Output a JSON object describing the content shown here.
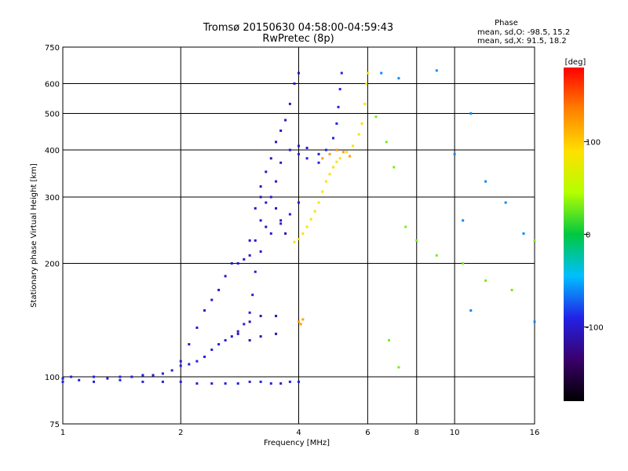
{
  "chart_data": {
    "type": "scatter",
    "title": "Tromsø 20150630 04:58:00-04:59:43",
    "subtitle": "RwPretec (8p)",
    "phase_header": "Phase",
    "phase_o": "mean, sd,O: -98.5, 15.2",
    "phase_x": "mean, sd,X:  91.5, 18.2",
    "xlabel": "Frequency [MHz]",
    "ylabel": "Stationary phase Virtual Height [km]",
    "x_scale": "log",
    "y_scale": "log",
    "xlim": [
      1,
      16
    ],
    "ylim": [
      75,
      750
    ],
    "grid": true,
    "x_ticks": [
      1,
      2,
      4,
      6,
      8,
      10,
      16
    ],
    "x_tick_labels": [
      "1",
      "2",
      "4",
      "6",
      "8",
      "10",
      "16"
    ],
    "y_ticks": [
      75,
      100,
      200,
      300,
      400,
      500,
      600,
      750
    ],
    "y_tick_labels": [
      "75",
      "100",
      "200",
      "300",
      "400",
      "500",
      "600",
      "750"
    ],
    "colorbar": {
      "label": "[deg]",
      "range": [
        -180,
        180
      ],
      "ticks": [
        100,
        0,
        -100
      ],
      "tick_labels": [
        "100",
        "0",
        "-100"
      ],
      "colors": [
        "#000000",
        "#3a006b",
        "#2222e6",
        "#00bfff",
        "#00c840",
        "#b4ff00",
        "#ffe000",
        "#ff8000",
        "#ff0000"
      ]
    },
    "series": [
      {
        "phase": -95,
        "points": [
          [
            1.0,
            99
          ],
          [
            1.05,
            100
          ],
          [
            1.1,
            98
          ],
          [
            1.2,
            100
          ],
          [
            1.3,
            99
          ],
          [
            1.4,
            100
          ],
          [
            1.5,
            100
          ],
          [
            1.6,
            101
          ],
          [
            1.7,
            101
          ],
          [
            1.8,
            102
          ],
          [
            1.9,
            104
          ],
          [
            2.0,
            107
          ],
          [
            2.1,
            108
          ],
          [
            2.2,
            110
          ],
          [
            2.3,
            113
          ],
          [
            2.4,
            118
          ],
          [
            2.5,
            122
          ],
          [
            2.6,
            125
          ],
          [
            2.7,
            128
          ],
          [
            2.8,
            132
          ],
          [
            2.9,
            138
          ],
          [
            3.0,
            148
          ],
          [
            3.05,
            165
          ],
          [
            3.1,
            190
          ],
          [
            3.2,
            215
          ],
          [
            3.4,
            240
          ],
          [
            3.6,
            255
          ],
          [
            3.8,
            270
          ],
          [
            4.0,
            290
          ]
        ]
      },
      {
        "phase": -92,
        "points": [
          [
            1.0,
            97
          ],
          [
            1.2,
            97
          ],
          [
            1.4,
            98
          ],
          [
            1.6,
            97
          ],
          [
            1.8,
            97
          ],
          [
            2.0,
            97
          ],
          [
            2.2,
            96
          ],
          [
            2.4,
            96
          ],
          [
            2.6,
            96
          ],
          [
            2.8,
            96
          ],
          [
            3.0,
            97
          ],
          [
            3.2,
            97
          ],
          [
            3.4,
            96
          ],
          [
            3.6,
            96
          ],
          [
            3.8,
            97
          ],
          [
            4.0,
            97
          ]
        ]
      },
      {
        "phase": -100,
        "points": [
          [
            2.0,
            110
          ],
          [
            2.1,
            122
          ],
          [
            2.2,
            135
          ],
          [
            2.3,
            150
          ],
          [
            2.4,
            160
          ],
          [
            2.5,
            170
          ],
          [
            2.6,
            185
          ],
          [
            2.7,
            200
          ],
          [
            2.8,
            200
          ],
          [
            2.9,
            205
          ],
          [
            3.0,
            210
          ],
          [
            3.1,
            230
          ],
          [
            3.2,
            260
          ],
          [
            3.3,
            290
          ],
          [
            3.4,
            300
          ],
          [
            3.5,
            330
          ],
          [
            3.6,
            370
          ],
          [
            3.8,
            400
          ],
          [
            4.0,
            410
          ],
          [
            4.2,
            405
          ],
          [
            4.5,
            390
          ],
          [
            5.0,
            400
          ]
        ]
      },
      {
        "phase": -105,
        "points": [
          [
            3.0,
            230
          ],
          [
            3.1,
            280
          ],
          [
            3.2,
            320
          ],
          [
            3.3,
            350
          ],
          [
            3.4,
            380
          ],
          [
            3.5,
            420
          ],
          [
            3.6,
            450
          ],
          [
            3.7,
            480
          ],
          [
            3.8,
            530
          ],
          [
            3.9,
            600
          ],
          [
            4.0,
            640
          ]
        ]
      },
      {
        "phase": -110,
        "points": [
          [
            2.8,
            130
          ],
          [
            3.0,
            140
          ],
          [
            3.2,
            145
          ],
          [
            3.5,
            145
          ],
          [
            3.0,
            125
          ],
          [
            3.2,
            128
          ],
          [
            3.5,
            130
          ],
          [
            3.2,
            300
          ],
          [
            3.3,
            250
          ],
          [
            3.5,
            280
          ],
          [
            3.6,
            260
          ],
          [
            3.7,
            240
          ]
        ]
      },
      {
        "phase": -90,
        "points": [
          [
            4.0,
            390
          ],
          [
            4.2,
            380
          ],
          [
            4.5,
            370
          ],
          [
            4.7,
            400
          ],
          [
            4.9,
            430
          ],
          [
            5.0,
            470
          ],
          [
            5.05,
            520
          ],
          [
            5.1,
            580
          ],
          [
            5.15,
            640
          ]
        ]
      },
      {
        "phase": 90,
        "points": [
          [
            3.9,
            228
          ],
          [
            4.0,
            232
          ],
          [
            4.1,
            240
          ],
          [
            4.2,
            250
          ],
          [
            4.3,
            262
          ],
          [
            4.4,
            275
          ],
          [
            4.5,
            290
          ],
          [
            4.6,
            310
          ],
          [
            4.7,
            330
          ],
          [
            4.8,
            345
          ],
          [
            4.9,
            360
          ],
          [
            5.0,
            372
          ],
          [
            5.1,
            380
          ],
          [
            5.3,
            395
          ],
          [
            5.5,
            410
          ],
          [
            5.7,
            440
          ],
          [
            5.8,
            470
          ],
          [
            5.9,
            530
          ],
          [
            5.95,
            600
          ],
          [
            6.0,
            640
          ]
        ]
      },
      {
        "phase": 120,
        "points": [
          [
            4.6,
            380
          ],
          [
            4.8,
            390
          ],
          [
            5.0,
            400
          ],
          [
            5.2,
            395
          ],
          [
            5.4,
            385
          ],
          [
            4.0,
            140
          ],
          [
            4.05,
            138
          ],
          [
            4.1,
            142
          ]
        ]
      },
      {
        "phase": 30,
        "points": [
          [
            6.3,
            490
          ],
          [
            6.7,
            420
          ],
          [
            7.0,
            360
          ],
          [
            7.5,
            250
          ],
          [
            8.0,
            230
          ],
          [
            9.0,
            210
          ],
          [
            10.5,
            200
          ],
          [
            12.0,
            180
          ],
          [
            14.0,
            170
          ],
          [
            16.0,
            230
          ],
          [
            7.2,
            106
          ],
          [
            6.8,
            125
          ]
        ]
      },
      {
        "phase": -60,
        "points": [
          [
            6.5,
            640
          ],
          [
            7.2,
            620
          ],
          [
            9.0,
            650
          ],
          [
            10.0,
            390
          ],
          [
            11.0,
            500
          ],
          [
            12.0,
            330
          ],
          [
            13.5,
            290
          ],
          [
            15.0,
            240
          ],
          [
            16.0,
            140
          ],
          [
            10.5,
            260
          ],
          [
            11.0,
            150
          ]
        ]
      }
    ]
  }
}
